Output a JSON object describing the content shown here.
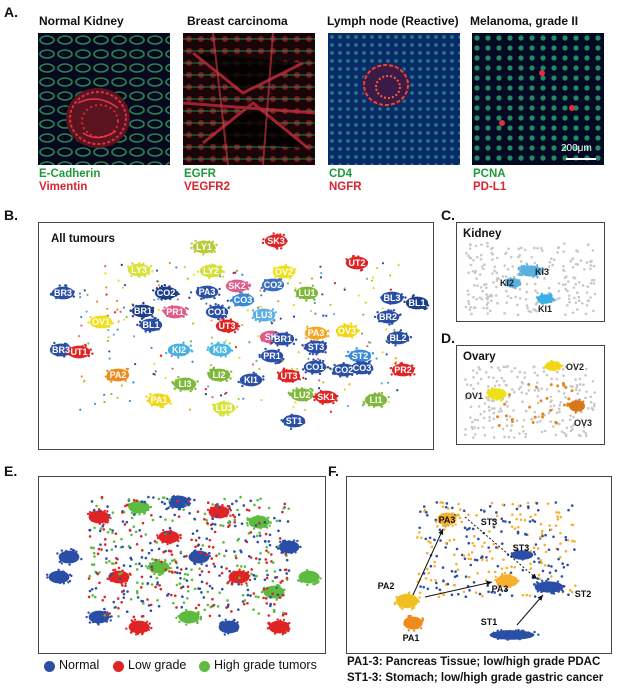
{
  "panelA": {
    "letter": "A.",
    "images": [
      {
        "title": "Normal Kidney",
        "marker_green": "E-Cadherin",
        "marker_red": "Vimentin"
      },
      {
        "title": "Breast carcinoma",
        "marker_green": "EGFR",
        "marker_red": "VEGFR2"
      },
      {
        "title": "Lymph node (Reactive)",
        "marker_green": "CD4",
        "marker_red": "NGFR"
      },
      {
        "title": "Melanoma, grade II",
        "marker_green": "PCNA",
        "marker_red": "PD-L1"
      }
    ],
    "scalebar": "200μm"
  },
  "panelB": {
    "letter": "B.",
    "title": "All tumours",
    "labels": [
      "LY1",
      "SK3",
      "LY3",
      "LY2",
      "OV2",
      "UT2",
      "BR3",
      "CO2",
      "PA3",
      "SK2",
      "CO2",
      "LU1",
      "BL3",
      "BL1",
      "OV1",
      "PR1",
      "CO1",
      "CO3",
      "LU3",
      "BR1",
      "BR2",
      "BR3",
      "BL1",
      "UT3",
      "SK",
      "OV3",
      "BL2",
      "UT1",
      "KI2",
      "KI3",
      "BR1",
      "PA3",
      "ST3",
      "ST2",
      "PR2",
      "PA2",
      "LI3",
      "LI2",
      "PR1",
      "KI1",
      "UT3",
      "CO1",
      "CO2",
      "CO3",
      "LI1",
      "PA1",
      "LU2",
      "SK1",
      "LU3",
      "ST1"
    ]
  },
  "panelC": {
    "letter": "C.",
    "title": "Kidney",
    "labels": [
      "KI3",
      "KI2",
      "KI1"
    ]
  },
  "panelD": {
    "letter": "D.",
    "title": "Ovary",
    "labels": [
      "OV2",
      "OV1",
      "OV3"
    ]
  },
  "panelE": {
    "letter": "E.",
    "legend": [
      {
        "label": "Normal",
        "color": "#2b4ea6"
      },
      {
        "label": "Low grade",
        "color": "#e02424"
      },
      {
        "label": "High grade tumors",
        "color": "#5dbb3f"
      }
    ]
  },
  "panelF": {
    "letter": "F.",
    "labels": [
      "PA3",
      "ST3",
      "ST3",
      "PA2",
      "PA3",
      "ST2",
      "PA1",
      "ST1"
    ],
    "caption_line1": "PA1-3: Pancreas Tissue; low/high grade PDAC",
    "caption_line2": "ST1-3: Stomach; low/high grade gastric cancer"
  },
  "colors": {
    "marker_green": "#1f9a3a",
    "marker_red": "#d8252f"
  }
}
